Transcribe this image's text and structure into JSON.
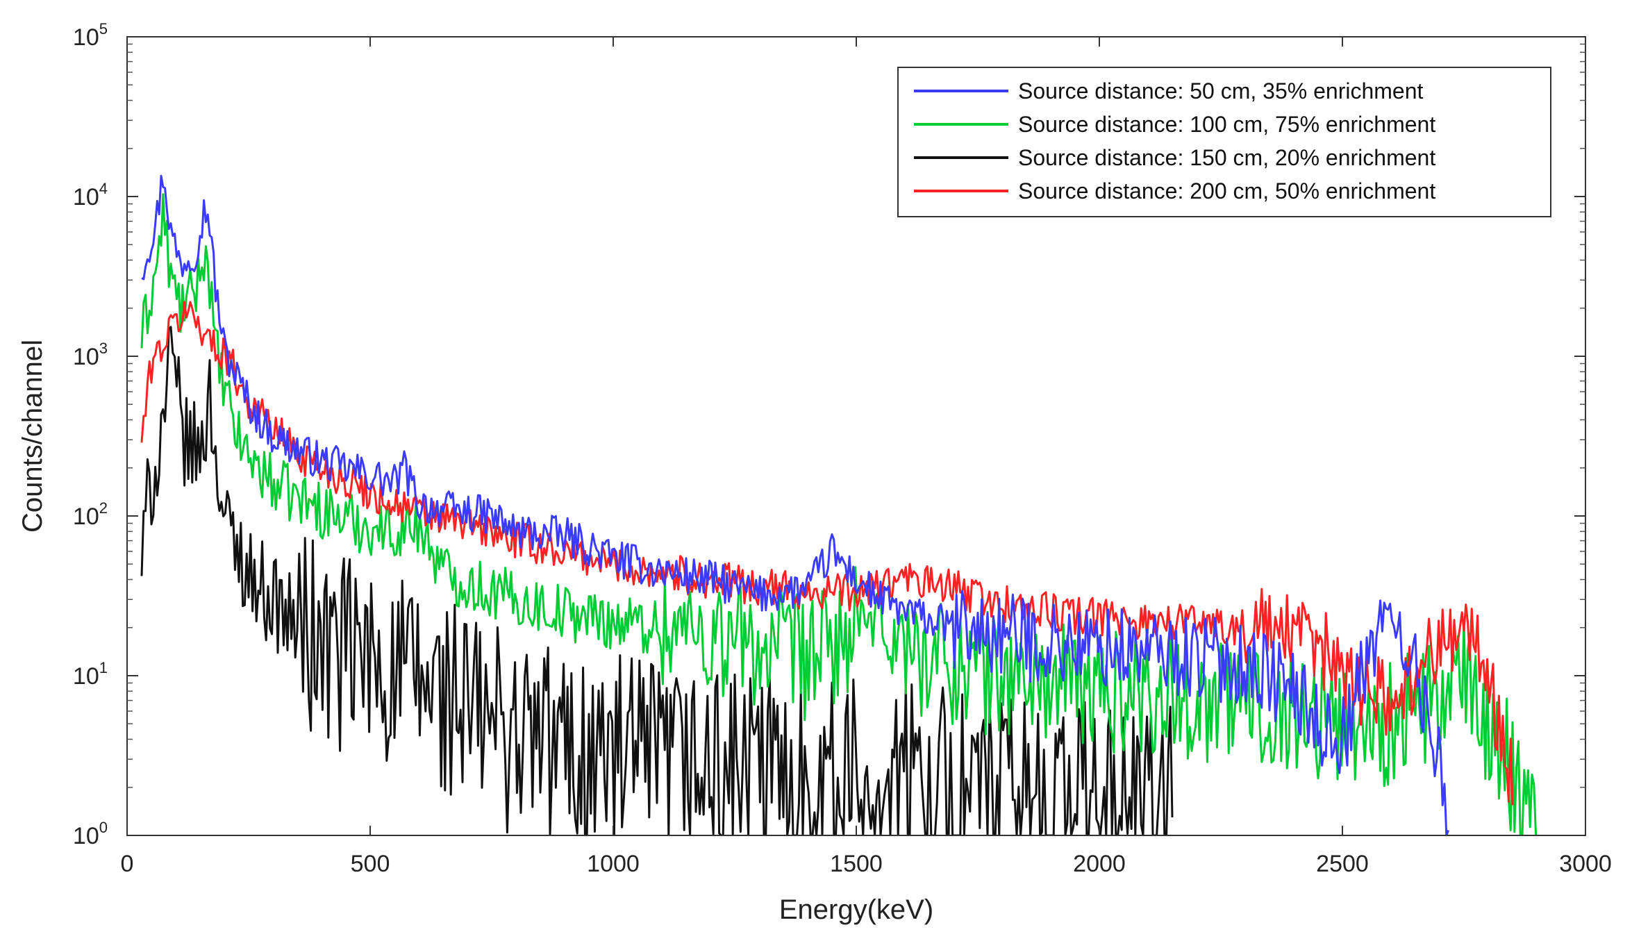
{
  "chart_data": {
    "type": "line",
    "title": "",
    "xlabel": "Energy(keV)",
    "ylabel": "Counts/channel",
    "xlim": [
      0,
      3000
    ],
    "ylim": [
      1,
      100000
    ],
    "yscale": "log",
    "grid": false,
    "legend_position": "top-right",
    "x_ticks": [
      {
        "value": 0,
        "label": "0"
      },
      {
        "value": 500,
        "label": "500"
      },
      {
        "value": 1000,
        "label": "1000"
      },
      {
        "value": 1500,
        "label": "1500"
      },
      {
        "value": 2000,
        "label": "2000"
      },
      {
        "value": 2500,
        "label": "2500"
      },
      {
        "value": 3000,
        "label": "3000"
      }
    ],
    "y_ticks": [
      {
        "value": 1,
        "base": "10",
        "exp": "0"
      },
      {
        "value": 10,
        "base": "10",
        "exp": "1"
      },
      {
        "value": 100,
        "base": "10",
        "exp": "2"
      },
      {
        "value": 1000,
        "base": "10",
        "exp": "3"
      },
      {
        "value": 10000,
        "base": "10",
        "exp": "4"
      },
      {
        "value": 100000,
        "base": "10",
        "exp": "5"
      }
    ],
    "series": [
      {
        "name": "Source distance: 50 cm, 35% enrichment",
        "color": "#3b3bff",
        "noise": 0.12,
        "x": [
          30,
          60,
          75,
          90,
          110,
          140,
          160,
          170,
          180,
          200,
          230,
          260,
          300,
          350,
          400,
          450,
          500,
          550,
          570,
          600,
          650,
          700,
          750,
          800,
          900,
          1000,
          1100,
          1200,
          1300,
          1400,
          1450,
          1500,
          1550,
          1600,
          1700,
          1800,
          1900,
          2000,
          2100,
          2200,
          2300,
          2350,
          2400,
          2450,
          2500,
          2550,
          2580,
          2620,
          2650,
          2700,
          2720
        ],
        "y": [
          3500,
          7000,
          14500,
          6000,
          3800,
          4500,
          8500,
          7000,
          3000,
          1100,
          700,
          450,
          320,
          260,
          220,
          200,
          180,
          160,
          200,
          120,
          110,
          105,
          100,
          80,
          75,
          55,
          45,
          40,
          32,
          35,
          60,
          40,
          30,
          25,
          20,
          18,
          16,
          15,
          14,
          13,
          12,
          10,
          8,
          5,
          4,
          12,
          25,
          20,
          10,
          3,
          1.2
        ]
      },
      {
        "name": "Source distance: 100 cm, 75% enrichment",
        "color": "#00cc33",
        "noise": 0.18,
        "x": [
          30,
          60,
          75,
          90,
          110,
          140,
          160,
          170,
          180,
          200,
          230,
          260,
          300,
          350,
          400,
          450,
          500,
          550,
          600,
          650,
          700,
          800,
          900,
          1000,
          1100,
          1200,
          1300,
          1400,
          1450,
          1500,
          1550,
          1600,
          1700,
          1800,
          1900,
          2000,
          2100,
          2200,
          2300,
          2400,
          2500,
          2600,
          2700,
          2750,
          2800,
          2850,
          2900
        ],
        "y": [
          1300,
          3500,
          8000,
          3000,
          2000,
          2500,
          4800,
          3000,
          1200,
          600,
          300,
          220,
          160,
          130,
          110,
          95,
          85,
          80,
          90,
          45,
          38,
          30,
          25,
          22,
          20,
          18,
          15,
          13,
          15,
          20,
          22,
          15,
          12,
          10,
          9,
          8,
          8,
          7,
          7,
          6,
          5,
          5,
          7,
          9,
          5,
          2.5,
          1.5
        ]
      },
      {
        "name": "Source distance: 150 cm, 20% enrichment",
        "color": "#111111",
        "noise": 0.3,
        "x": [
          30,
          45,
          60,
          90,
          120,
          150,
          170,
          180,
          200,
          230,
          260,
          300,
          350,
          400,
          500,
          600,
          700,
          800,
          900,
          1000,
          1200,
          1400,
          1600,
          1800,
          2000,
          2150
        ],
        "y": [
          50,
          150,
          200,
          950,
          280,
          250,
          550,
          300,
          90,
          60,
          40,
          30,
          20,
          15,
          12,
          9,
          6,
          4.5,
          3.5,
          3,
          2.5,
          2.2,
          2,
          1.8,
          1.6,
          1.4
        ]
      },
      {
        "name": "Source distance: 200 cm, 50% enrichment",
        "color": "#ff2222",
        "noise": 0.12,
        "x": [
          30,
          50,
          80,
          110,
          130,
          150,
          180,
          200,
          250,
          300,
          350,
          400,
          450,
          500,
          550,
          600,
          650,
          700,
          800,
          900,
          1000,
          1100,
          1200,
          1300,
          1400,
          1500,
          1600,
          1700,
          1800,
          1900,
          2000,
          2100,
          2200,
          2300,
          2400,
          2500,
          2550,
          2600,
          2650,
          2700,
          2750,
          2800,
          2850
        ],
        "y": [
          300,
          900,
          1300,
          1800,
          1900,
          1600,
          1100,
          1100,
          520,
          360,
          250,
          200,
          170,
          140,
          120,
          105,
          95,
          88,
          70,
          60,
          50,
          45,
          40,
          36,
          34,
          33,
          40,
          35,
          28,
          25,
          23,
          22,
          22,
          20,
          18,
          12,
          8,
          7,
          10,
          18,
          20,
          10,
          2
        ]
      }
    ]
  }
}
